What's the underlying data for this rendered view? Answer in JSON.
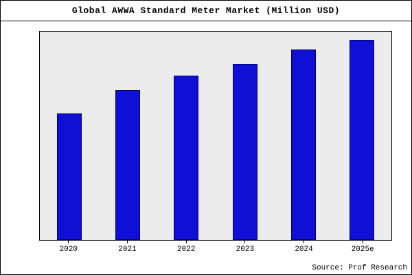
{
  "title": "Global AWWA Standard Meter Market (Million USD)",
  "source": "Source: Prof Research",
  "colors": {
    "bar_fill": "#0f0fd6",
    "bar_border": "#00006e",
    "plot_background": "#ececec",
    "frame_border": "#000000"
  },
  "chart_data": {
    "type": "bar",
    "title": "Global AWWA Standard Meter Market (Million USD)",
    "categories": [
      "2020",
      "2021",
      "2022",
      "2023",
      "2024",
      "2025e"
    ],
    "values": [
      63,
      75,
      82,
      88,
      95,
      100
    ],
    "xlabel": "",
    "ylabel": "",
    "ylim": [
      0,
      104
    ],
    "grid": false,
    "legend": "none",
    "y_axis_labels_visible": false,
    "source": "Source: Prof Research"
  }
}
